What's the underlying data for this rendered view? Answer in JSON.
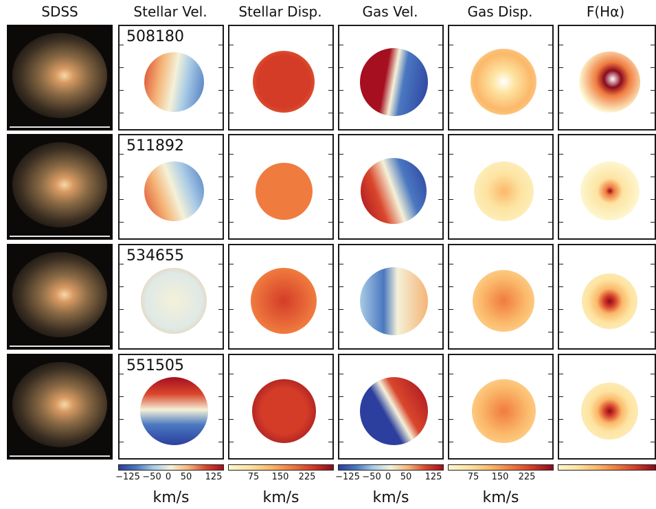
{
  "column_titles": [
    "SDSS",
    "Stellar Vel.",
    "Stellar Disp.",
    "Gas Vel.",
    "Gas Disp.",
    "F(Hα)"
  ],
  "rows": [
    {
      "id": "508180"
    },
    {
      "id": "511892"
    },
    {
      "id": "534655"
    },
    {
      "id": "551505"
    }
  ],
  "colorbars": [
    {
      "column": "Stellar Vel.",
      "colormap": "blue-white-red",
      "ticks": [
        "−125",
        "−50",
        "0",
        "50",
        "125"
      ],
      "unit": "km/s"
    },
    {
      "column": "Stellar Disp.",
      "colormap": "yellow-orange-red",
      "ticks": [
        "75",
        "150",
        "225"
      ],
      "unit": "km/s"
    },
    {
      "column": "Gas Vel.",
      "colormap": "blue-white-red",
      "ticks": [
        "−125",
        "−50",
        "0",
        "50",
        "125"
      ],
      "unit": "km/s"
    },
    {
      "column": "Gas Disp.",
      "colormap": "yellow-orange-red",
      "ticks": [
        "75",
        "150",
        "225"
      ],
      "unit": "km/s"
    },
    {
      "column": "F(Hα)",
      "colormap": "yellow-orange-red",
      "ticks": [],
      "unit": ""
    }
  ],
  "colors": {
    "diverging": [
      "#2c3f9e",
      "#4a78c0",
      "#a9cbe6",
      "#f4f1d8",
      "#f5b477",
      "#d9472c",
      "#a50f1f"
    ],
    "sequential": [
      "#fdf6cf",
      "#fde3a0",
      "#fbb86a",
      "#f07b3f",
      "#d43c27",
      "#8a0a1e"
    ]
  }
}
